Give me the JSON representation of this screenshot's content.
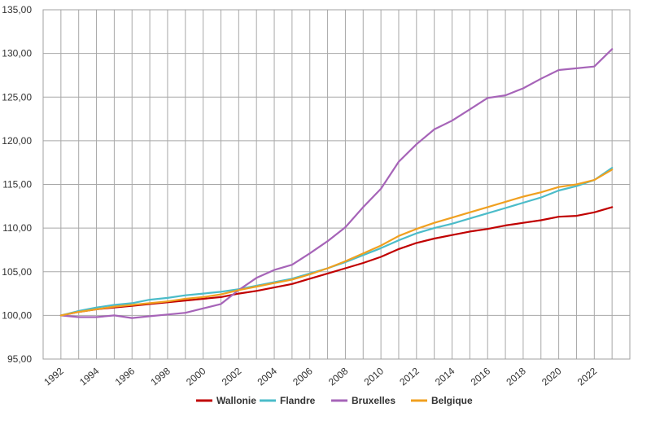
{
  "chart_data": {
    "type": "line",
    "title": "",
    "xlabel": "",
    "ylabel": "",
    "ylim": [
      95,
      135
    ],
    "yticks": [
      95,
      100,
      105,
      110,
      115,
      120,
      125,
      130,
      135
    ],
    "ytick_labels": [
      "95,00",
      "100,00",
      "105,00",
      "110,00",
      "115,00",
      "120,00",
      "125,00",
      "130,00",
      "135,00"
    ],
    "xlim": [
      1991,
      2024
    ],
    "xticks": [
      1992,
      1994,
      1996,
      1998,
      2000,
      2002,
      2004,
      2006,
      2008,
      2010,
      2012,
      2014,
      2016,
      2018,
      2020,
      2022
    ],
    "xtick_labels": [
      "1992",
      "1994",
      "1996",
      "1998",
      "2000",
      "2002",
      "2004",
      "2006",
      "2008",
      "2010",
      "2012",
      "2014",
      "2016",
      "2018",
      "2020",
      "2022"
    ],
    "grid": true,
    "legend_position": "bottom",
    "x": [
      1992,
      1993,
      1994,
      1995,
      1996,
      1997,
      1998,
      1999,
      2000,
      2001,
      2002,
      2003,
      2004,
      2005,
      2006,
      2007,
      2008,
      2009,
      2010,
      2011,
      2012,
      2013,
      2014,
      2015,
      2016,
      2017,
      2018,
      2019,
      2020,
      2021,
      2022,
      2023
    ],
    "series": [
      {
        "name": "Wallonie",
        "color": "#c00000",
        "values": [
          100.0,
          100.4,
          100.7,
          100.9,
          101.1,
          101.3,
          101.5,
          101.7,
          101.9,
          102.1,
          102.5,
          102.8,
          103.2,
          103.6,
          104.2,
          104.8,
          105.4,
          106.0,
          106.7,
          107.6,
          108.3,
          108.8,
          109.2,
          109.6,
          109.9,
          110.3,
          110.6,
          110.9,
          111.3,
          111.4,
          111.8,
          112.4
        ]
      },
      {
        "name": "Flandre",
        "color": "#4bbcc9",
        "values": [
          100.0,
          100.5,
          100.9,
          101.2,
          101.4,
          101.8,
          102.0,
          102.3,
          102.5,
          102.7,
          103.0,
          103.4,
          103.8,
          104.2,
          104.8,
          105.4,
          106.1,
          106.9,
          107.7,
          108.6,
          109.4,
          110.0,
          110.5,
          111.1,
          111.7,
          112.3,
          112.9,
          113.5,
          114.3,
          114.8,
          115.5,
          116.9
        ]
      },
      {
        "name": "Bruxelles",
        "color": "#a664b8",
        "values": [
          100.0,
          99.8,
          99.8,
          100.0,
          99.7,
          99.9,
          100.1,
          100.3,
          100.8,
          101.3,
          102.9,
          104.3,
          105.2,
          105.8,
          107.1,
          108.5,
          110.1,
          112.4,
          114.5,
          117.6,
          119.6,
          121.3,
          122.3,
          123.6,
          124.9,
          125.2,
          126.0,
          127.1,
          128.1,
          128.3,
          128.5,
          130.5
        ]
      },
      {
        "name": "Belgique",
        "color": "#f0a020",
        "values": [
          100.0,
          100.4,
          100.7,
          101.0,
          101.2,
          101.4,
          101.6,
          101.9,
          102.1,
          102.4,
          102.9,
          103.3,
          103.7,
          104.1,
          104.7,
          105.4,
          106.2,
          107.1,
          108.0,
          109.1,
          109.9,
          110.6,
          111.2,
          111.8,
          112.4,
          113.0,
          113.6,
          114.1,
          114.7,
          115.0,
          115.5,
          116.7
        ]
      }
    ]
  }
}
